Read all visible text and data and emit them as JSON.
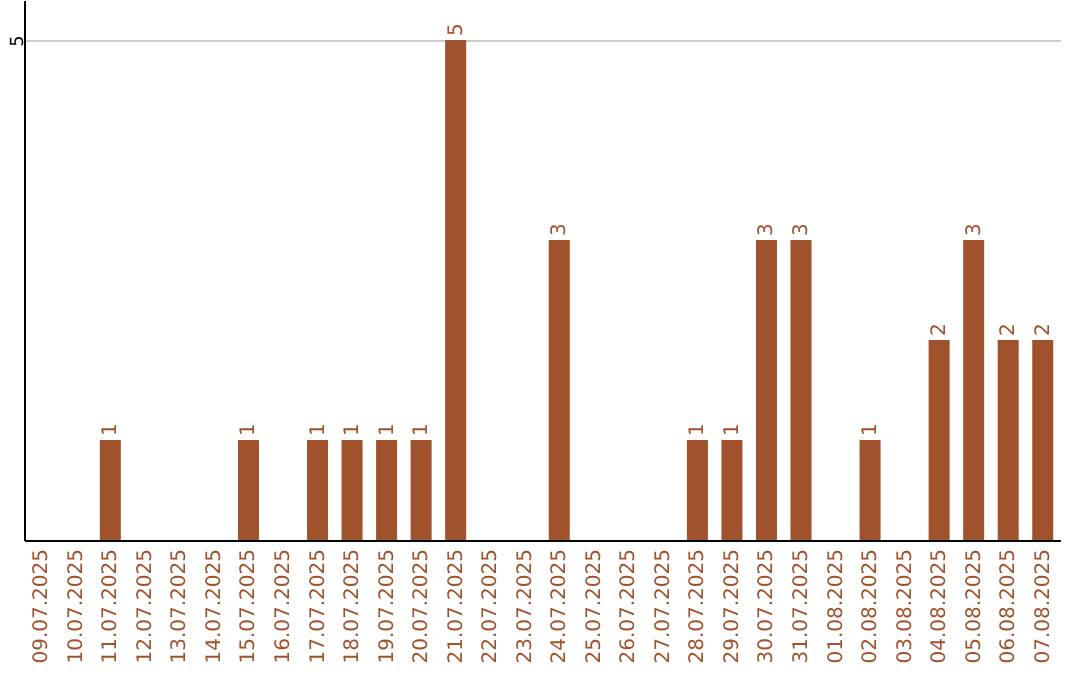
{
  "chart_data": {
    "type": "bar",
    "categories": [
      "09.07.2025",
      "10.07.2025",
      "11.07.2025",
      "12.07.2025",
      "13.07.2025",
      "14.07.2025",
      "15.07.2025",
      "16.07.2025",
      "17.07.2025",
      "18.07.2025",
      "19.07.2025",
      "20.07.2025",
      "21.07.2025",
      "22.07.2025",
      "23.07.2025",
      "24.07.2025",
      "25.07.2025",
      "26.07.2025",
      "27.07.2025",
      "28.07.2025",
      "29.07.2025",
      "30.07.2025",
      "31.07.2025",
      "01.08.2025",
      "02.08.2025",
      "03.08.2025",
      "04.08.2025",
      "05.08.2025",
      "06.08.2025",
      "07.08.2025"
    ],
    "values": [
      0,
      0,
      1,
      0,
      0,
      0,
      1,
      0,
      1,
      1,
      1,
      1,
      5,
      0,
      0,
      3,
      0,
      0,
      0,
      1,
      1,
      3,
      3,
      0,
      1,
      0,
      2,
      3,
      2,
      2
    ],
    "value_labels": [
      null,
      null,
      "1",
      null,
      null,
      null,
      "1",
      null,
      "1",
      "1",
      "1",
      "1",
      "5",
      null,
      null,
      "3",
      null,
      null,
      null,
      "1",
      "1",
      "3",
      "3",
      null,
      "1",
      null,
      "2",
      "3",
      "2",
      "2"
    ],
    "color": "#a0522d",
    "ylim": [
      0,
      5.4
    ],
    "yticks": [
      5
    ],
    "grid": "y"
  }
}
